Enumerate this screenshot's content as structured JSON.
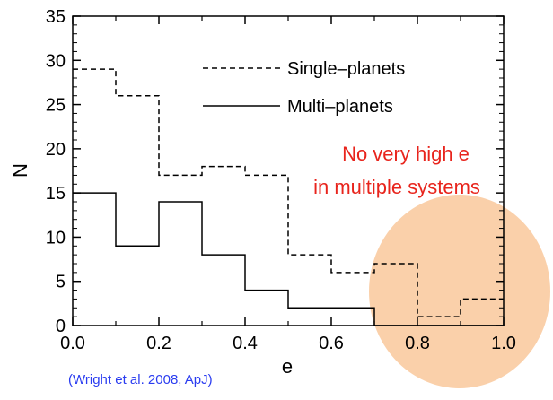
{
  "chart_data": {
    "type": "step",
    "xlabel": "e",
    "ylabel": "N",
    "xlim": [
      0.0,
      1.0
    ],
    "ylim": [
      0,
      35
    ],
    "x_ticks": [
      "0.0",
      "0.2",
      "0.4",
      "0.6",
      "0.8",
      "1.0"
    ],
    "y_ticks": [
      "0",
      "5",
      "10",
      "15",
      "20",
      "25",
      "30",
      "35"
    ],
    "bin_edges": [
      0.0,
      0.1,
      0.2,
      0.3,
      0.4,
      0.5,
      0.6,
      0.7,
      0.8,
      0.9,
      1.0
    ],
    "series": [
      {
        "name": "Single–planets",
        "style": "dashed",
        "values": [
          29,
          26,
          17,
          18,
          17,
          8,
          6,
          7,
          1,
          3
        ]
      },
      {
        "name": "Multi–planets",
        "style": "solid",
        "values": [
          15,
          9,
          14,
          8,
          4,
          2,
          2,
          0,
          0,
          0
        ]
      }
    ],
    "annotation": [
      "No very high e",
      "in multiple systems"
    ],
    "citation": "(Wright et al. 2008, ApJ)",
    "highlight_color": "#f9c89b",
    "annotation_color": "#e8241c",
    "citation_color": "#2a3cf0"
  }
}
